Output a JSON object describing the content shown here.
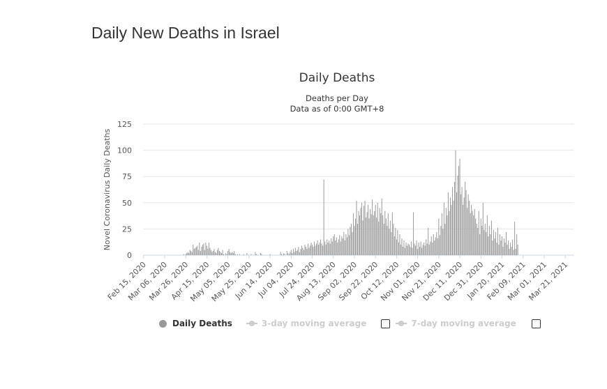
{
  "page": {
    "title": "Daily New Deaths in Israel"
  },
  "chart_data": {
    "type": "bar",
    "title": "Daily Deaths",
    "subtitle": [
      "Deaths per Day",
      "Data as of 0:00 GMT+8"
    ],
    "ylabel": "Novel Coronavirus Daily Deaths",
    "xlabel": "",
    "ylim": [
      0,
      125
    ],
    "yticks": [
      0,
      25,
      50,
      75,
      100,
      125
    ],
    "x_start": "2020-02-15",
    "x_end": "2021-03-29",
    "xtick_labels": [
      "Feb 15, 2020",
      "Mar 06, 2020",
      "Mar 26, 2020",
      "Apr 15, 2020",
      "May 05, 2020",
      "May 25, 2020",
      "Jun 14, 2020",
      "Jul 04, 2020",
      "Jul 24, 2020",
      "Aug 13, 2020",
      "Sep 02, 2020",
      "Sep 22, 2020",
      "Oct 12, 2020",
      "Nov 01, 2020",
      "Nov 21, 2020",
      "Dec 11, 2020",
      "Dec 31, 2020",
      "Jan 20, 2021",
      "Feb 09, 2021",
      "Mar 01, 2021",
      "Mar 21, 2021"
    ],
    "grid": true,
    "bar_color": "#999999",
    "series": [
      {
        "name": "Daily Deaths",
        "values": [
          0,
          0,
          0,
          0,
          0,
          0,
          0,
          0,
          0,
          0,
          0,
          0,
          0,
          0,
          0,
          0,
          0,
          0,
          0,
          0,
          0,
          0,
          0,
          0,
          0,
          0,
          0,
          0,
          0,
          0,
          0,
          0,
          0,
          0,
          0,
          0,
          0,
          0,
          1,
          0,
          1,
          2,
          3,
          2,
          5,
          4,
          3,
          10,
          6,
          7,
          8,
          9,
          5,
          12,
          4,
          8,
          10,
          11,
          5,
          12,
          9,
          6,
          12,
          7,
          5,
          3,
          4,
          6,
          3,
          2,
          5,
          7,
          4,
          3,
          2,
          5,
          1,
          0,
          2,
          1,
          4,
          6,
          3,
          2,
          3,
          2,
          4,
          1,
          0,
          1,
          0,
          1,
          0,
          0,
          0,
          1,
          0,
          0,
          2,
          0,
          0,
          0,
          1,
          0,
          0,
          0,
          3,
          1,
          0,
          0,
          0,
          2,
          1,
          0,
          0,
          0,
          0,
          0,
          0,
          0,
          1,
          0,
          0,
          0,
          0,
          0,
          0,
          0,
          0,
          0,
          3,
          1,
          0,
          2,
          1,
          0,
          4,
          2,
          1,
          3,
          5,
          2,
          6,
          3,
          7,
          4,
          5,
          8,
          3,
          6,
          9,
          7,
          5,
          10,
          8,
          6,
          11,
          7,
          9,
          12,
          10,
          8,
          13,
          9,
          11,
          14,
          10,
          12,
          15,
          11,
          9,
          72,
          13,
          10,
          15,
          12,
          14,
          11,
          16,
          13,
          18,
          20,
          14,
          17,
          12,
          15,
          19,
          13,
          18,
          16,
          22,
          14,
          20,
          17,
          25,
          19,
          27,
          30,
          22,
          40,
          28,
          35,
          52,
          30,
          42,
          38,
          45,
          50,
          33,
          47,
          52,
          36,
          41,
          48,
          35,
          44,
          39,
          53,
          38,
          42,
          48,
          36,
          50,
          32,
          45,
          40,
          54,
          38,
          30,
          42,
          35,
          28,
          40,
          25,
          33,
          22,
          41,
          30,
          18,
          26,
          15,
          24,
          12,
          20,
          10,
          16,
          8,
          14,
          7,
          12,
          9,
          11,
          10,
          8,
          13,
          7,
          41,
          11,
          9,
          14,
          6,
          12,
          8,
          13,
          7,
          10,
          12,
          9,
          15,
          11,
          26,
          10,
          13,
          18,
          12,
          20,
          14,
          17,
          22,
          16,
          35,
          19,
          28,
          40,
          25,
          50,
          30,
          45,
          38,
          60,
          42,
          55,
          48,
          65,
          52,
          70,
          100,
          60,
          76,
          85,
          92,
          58,
          65,
          48,
          55,
          70,
          62,
          45,
          58,
          52,
          40,
          48,
          42,
          38,
          44,
          35,
          30,
          26,
          42,
          20,
          35,
          28,
          50,
          24,
          30,
          22,
          38,
          18,
          28,
          20,
          33,
          14,
          24,
          16,
          22,
          12,
          26,
          10,
          20,
          14,
          18,
          8,
          16,
          12,
          22,
          10,
          14,
          6,
          12,
          8,
          15,
          5,
          32,
          6,
          20,
          10
        ]
      },
      {
        "name": "3-day moving average",
        "enabled": false
      },
      {
        "name": "7-day moving average",
        "enabled": false
      }
    ],
    "legend_position": "bottom-left"
  },
  "legend": {
    "items": [
      {
        "label": "Daily Deaths",
        "active": true
      },
      {
        "label": "3-day moving average",
        "active": false
      },
      {
        "label": "7-day moving average",
        "active": false
      }
    ]
  }
}
